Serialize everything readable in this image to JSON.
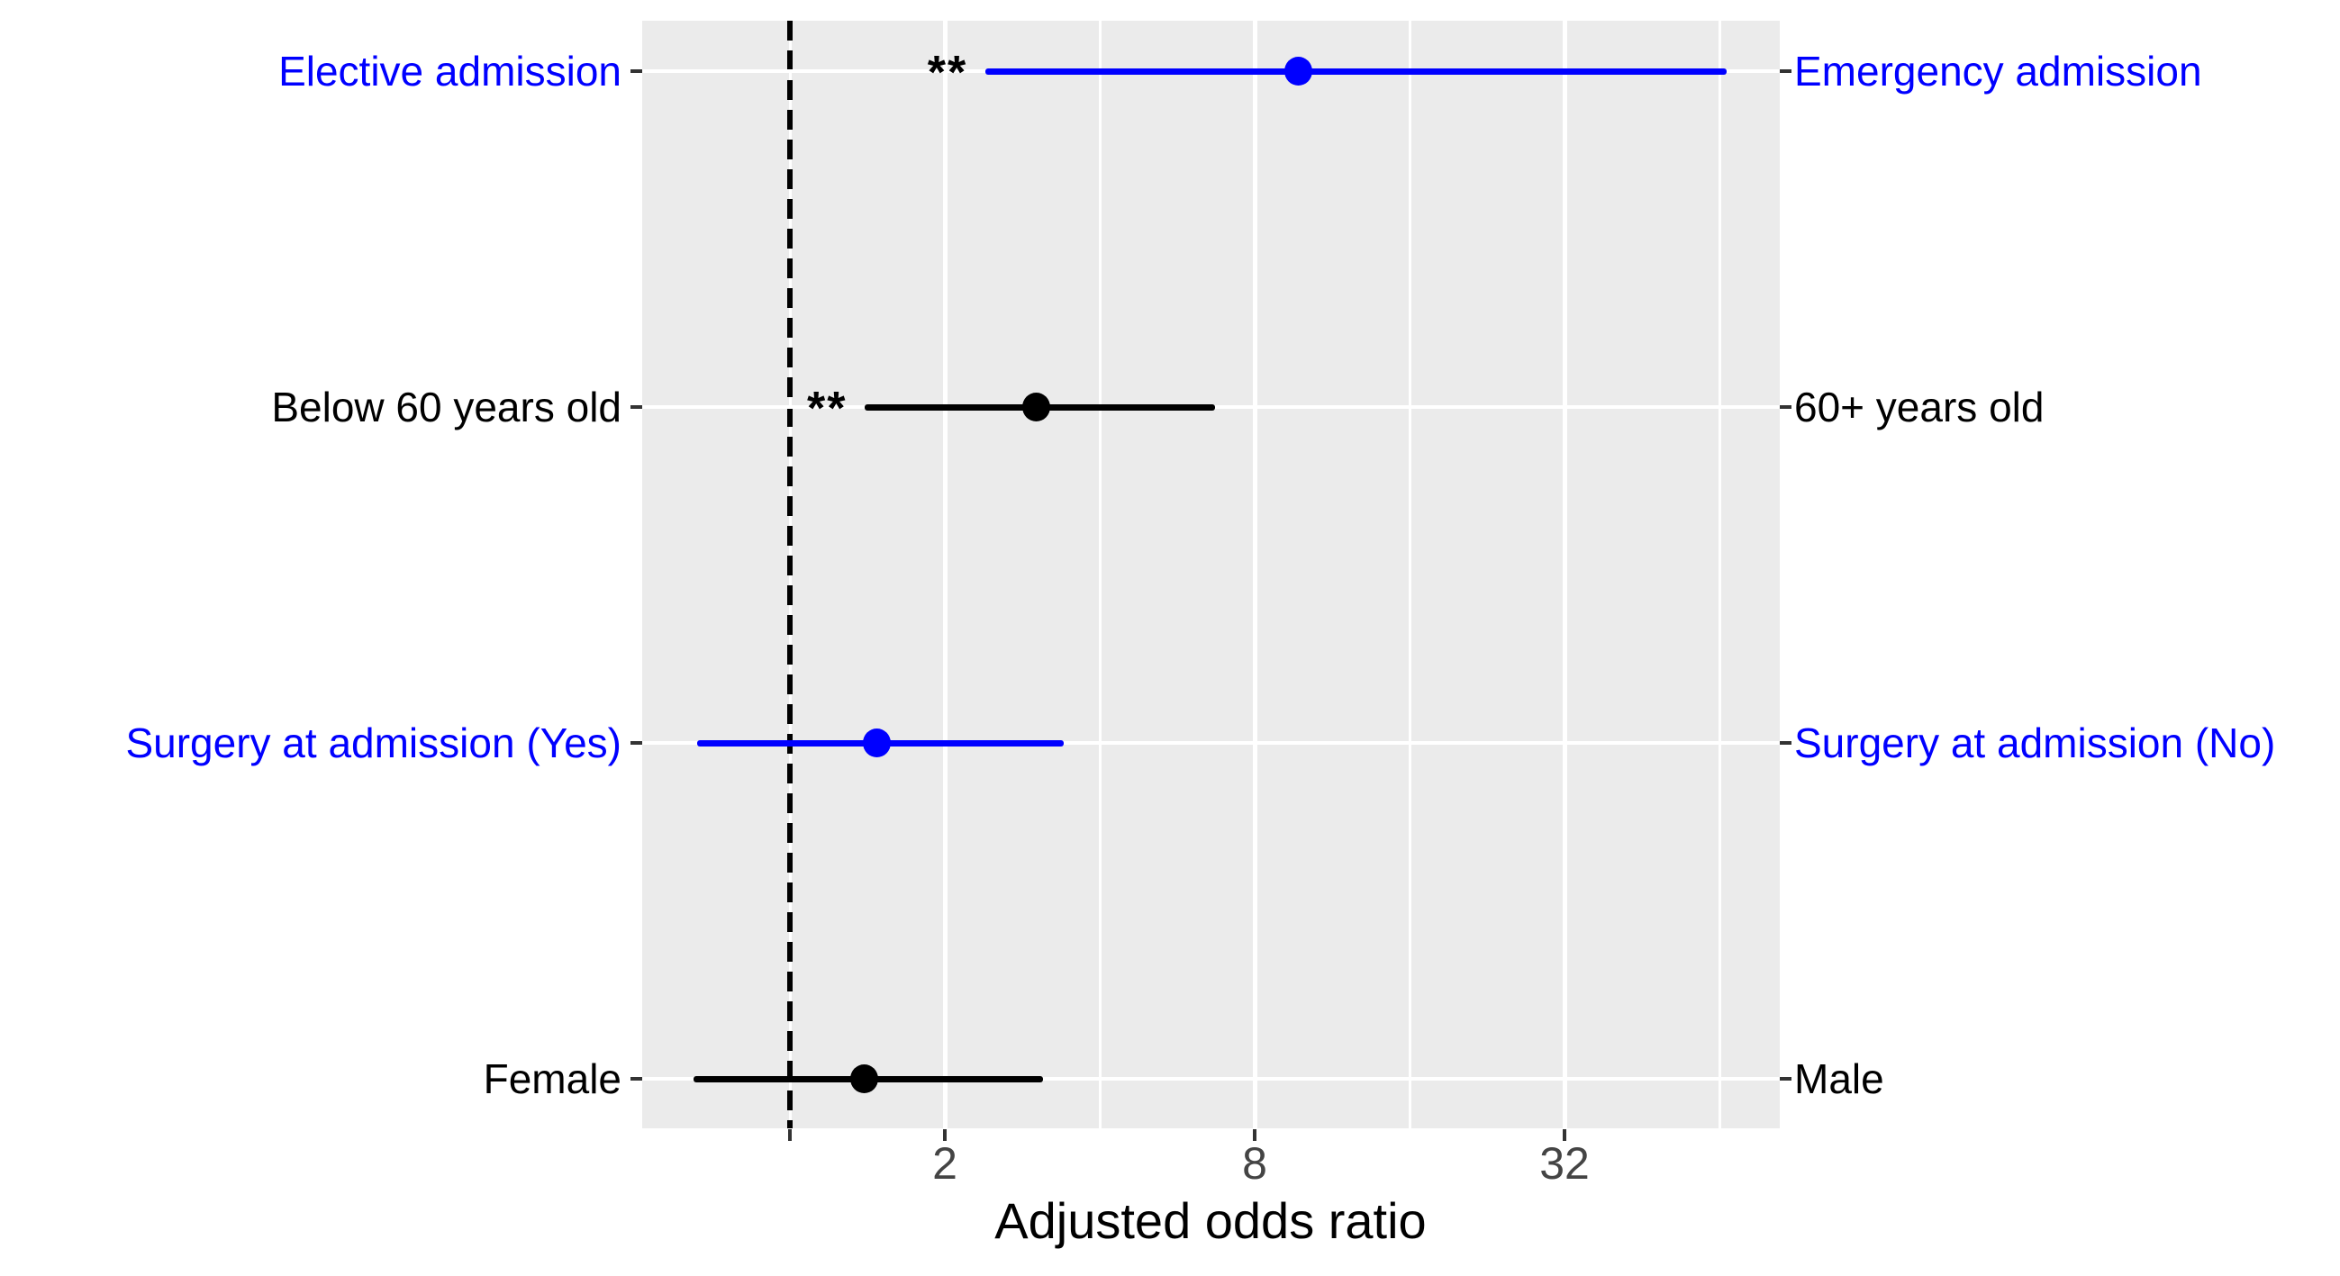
{
  "chart_data": {
    "type": "scatter",
    "subtype": "forest-plot-dot-interval",
    "title": "",
    "xlabel": "Adjusted odds ratio",
    "ylabel": "",
    "x_scale": "log2",
    "xlim": [
      0.52,
      84
    ],
    "grid": "on",
    "legend": "none",
    "reference_line_or": 1,
    "x_ticks": [
      {
        "value": 1,
        "label": ""
      },
      {
        "value": 2,
        "label": "2"
      },
      {
        "value": 8,
        "label": "8"
      },
      {
        "value": 32,
        "label": "32"
      }
    ],
    "x_major_gridlines": [
      2,
      8,
      32
    ],
    "x_minor_gridlines": [
      1,
      4,
      16,
      64
    ],
    "rows": [
      {
        "label_left": "Elective admission",
        "label_right": "Emergency admission",
        "color": "#0000FF",
        "or": 9.7,
        "ci_low": 2.4,
        "ci_high": 66,
        "significance": "**"
      },
      {
        "label_left": "Below 60 years old",
        "label_right": "60+ years old",
        "color": "#000000",
        "or": 3.0,
        "ci_low": 1.4,
        "ci_high": 6.7,
        "significance": "**"
      },
      {
        "label_left": "Surgery at admission (Yes)",
        "label_right": "Surgery at admission (No)",
        "color": "#0000FF",
        "or": 1.47,
        "ci_low": 0.66,
        "ci_high": 3.4,
        "significance": ""
      },
      {
        "label_left": "Female",
        "label_right": "Male",
        "color": "#000000",
        "or": 1.39,
        "ci_low": 0.65,
        "ci_high": 3.1,
        "significance": ""
      }
    ]
  },
  "styles": {
    "panel_bg": "#EBEBEB",
    "grid_color": "#FFFFFF",
    "blue": "#0000FF",
    "black": "#000000",
    "tick_label_color": "#444444",
    "tick_mark_color": "#333333"
  }
}
